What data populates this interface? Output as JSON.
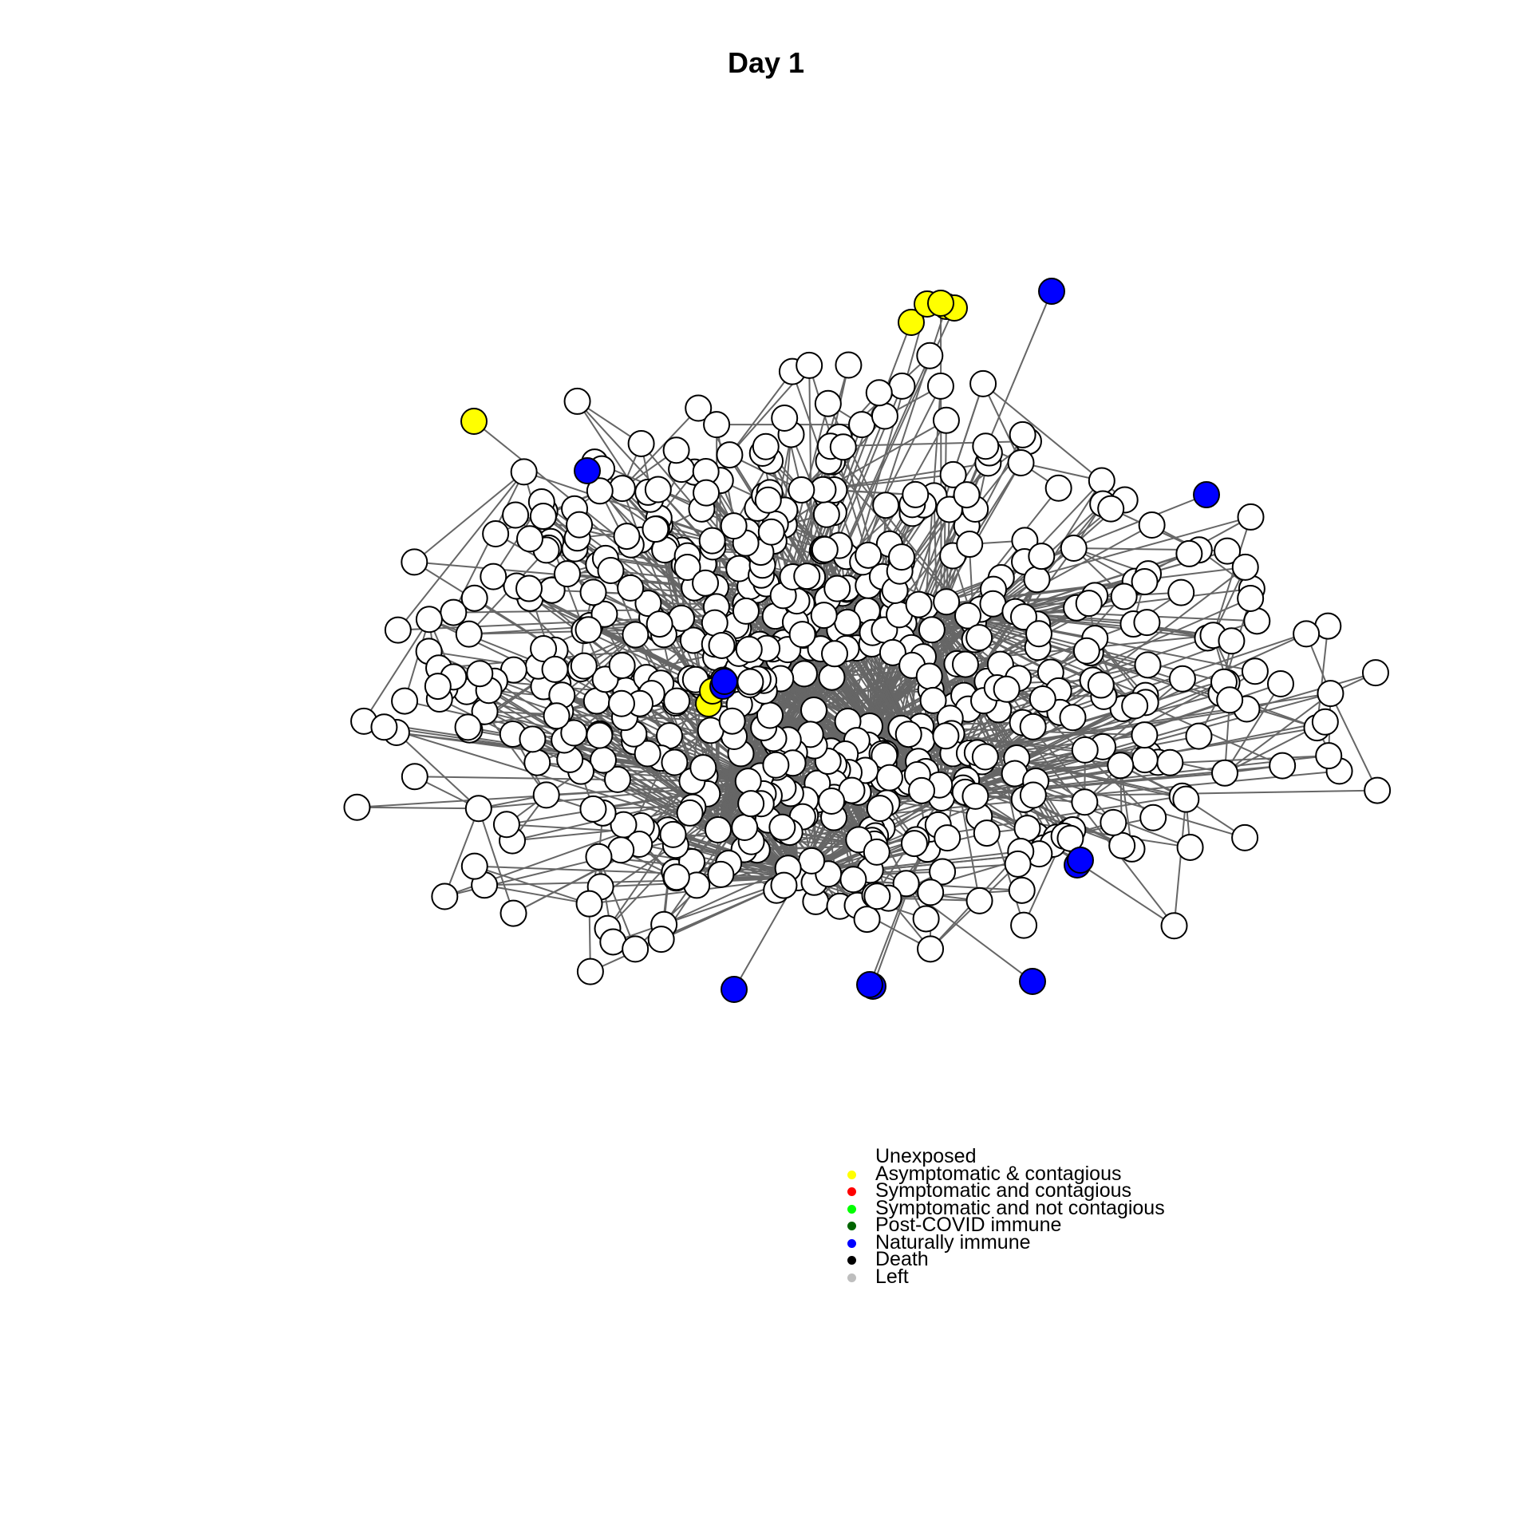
{
  "title": "Day 1",
  "legend": [
    {
      "label": "Unexposed",
      "color": "#ffffff"
    },
    {
      "label": "Asymptomatic & contagious",
      "color": "#ffff00"
    },
    {
      "label": "Symptomatic and contagious",
      "color": "#ff0000"
    },
    {
      "label": "Symptomatic and not contagious",
      "color": "#00ff00"
    },
    {
      "label": "Post-COVID immune",
      "color": "#006400"
    },
    {
      "label": "Naturally immune",
      "color": "#0000ff"
    },
    {
      "label": "Death",
      "color": "#000000"
    },
    {
      "label": "Left",
      "color": "#bebebe"
    }
  ],
  "network": {
    "node_count": 600,
    "counts": {
      "unexposed": 581,
      "asymptomatic_contagious": 8,
      "naturally_immune": 11
    },
    "edge_color": "#666666",
    "node_stroke": "#000000"
  }
}
